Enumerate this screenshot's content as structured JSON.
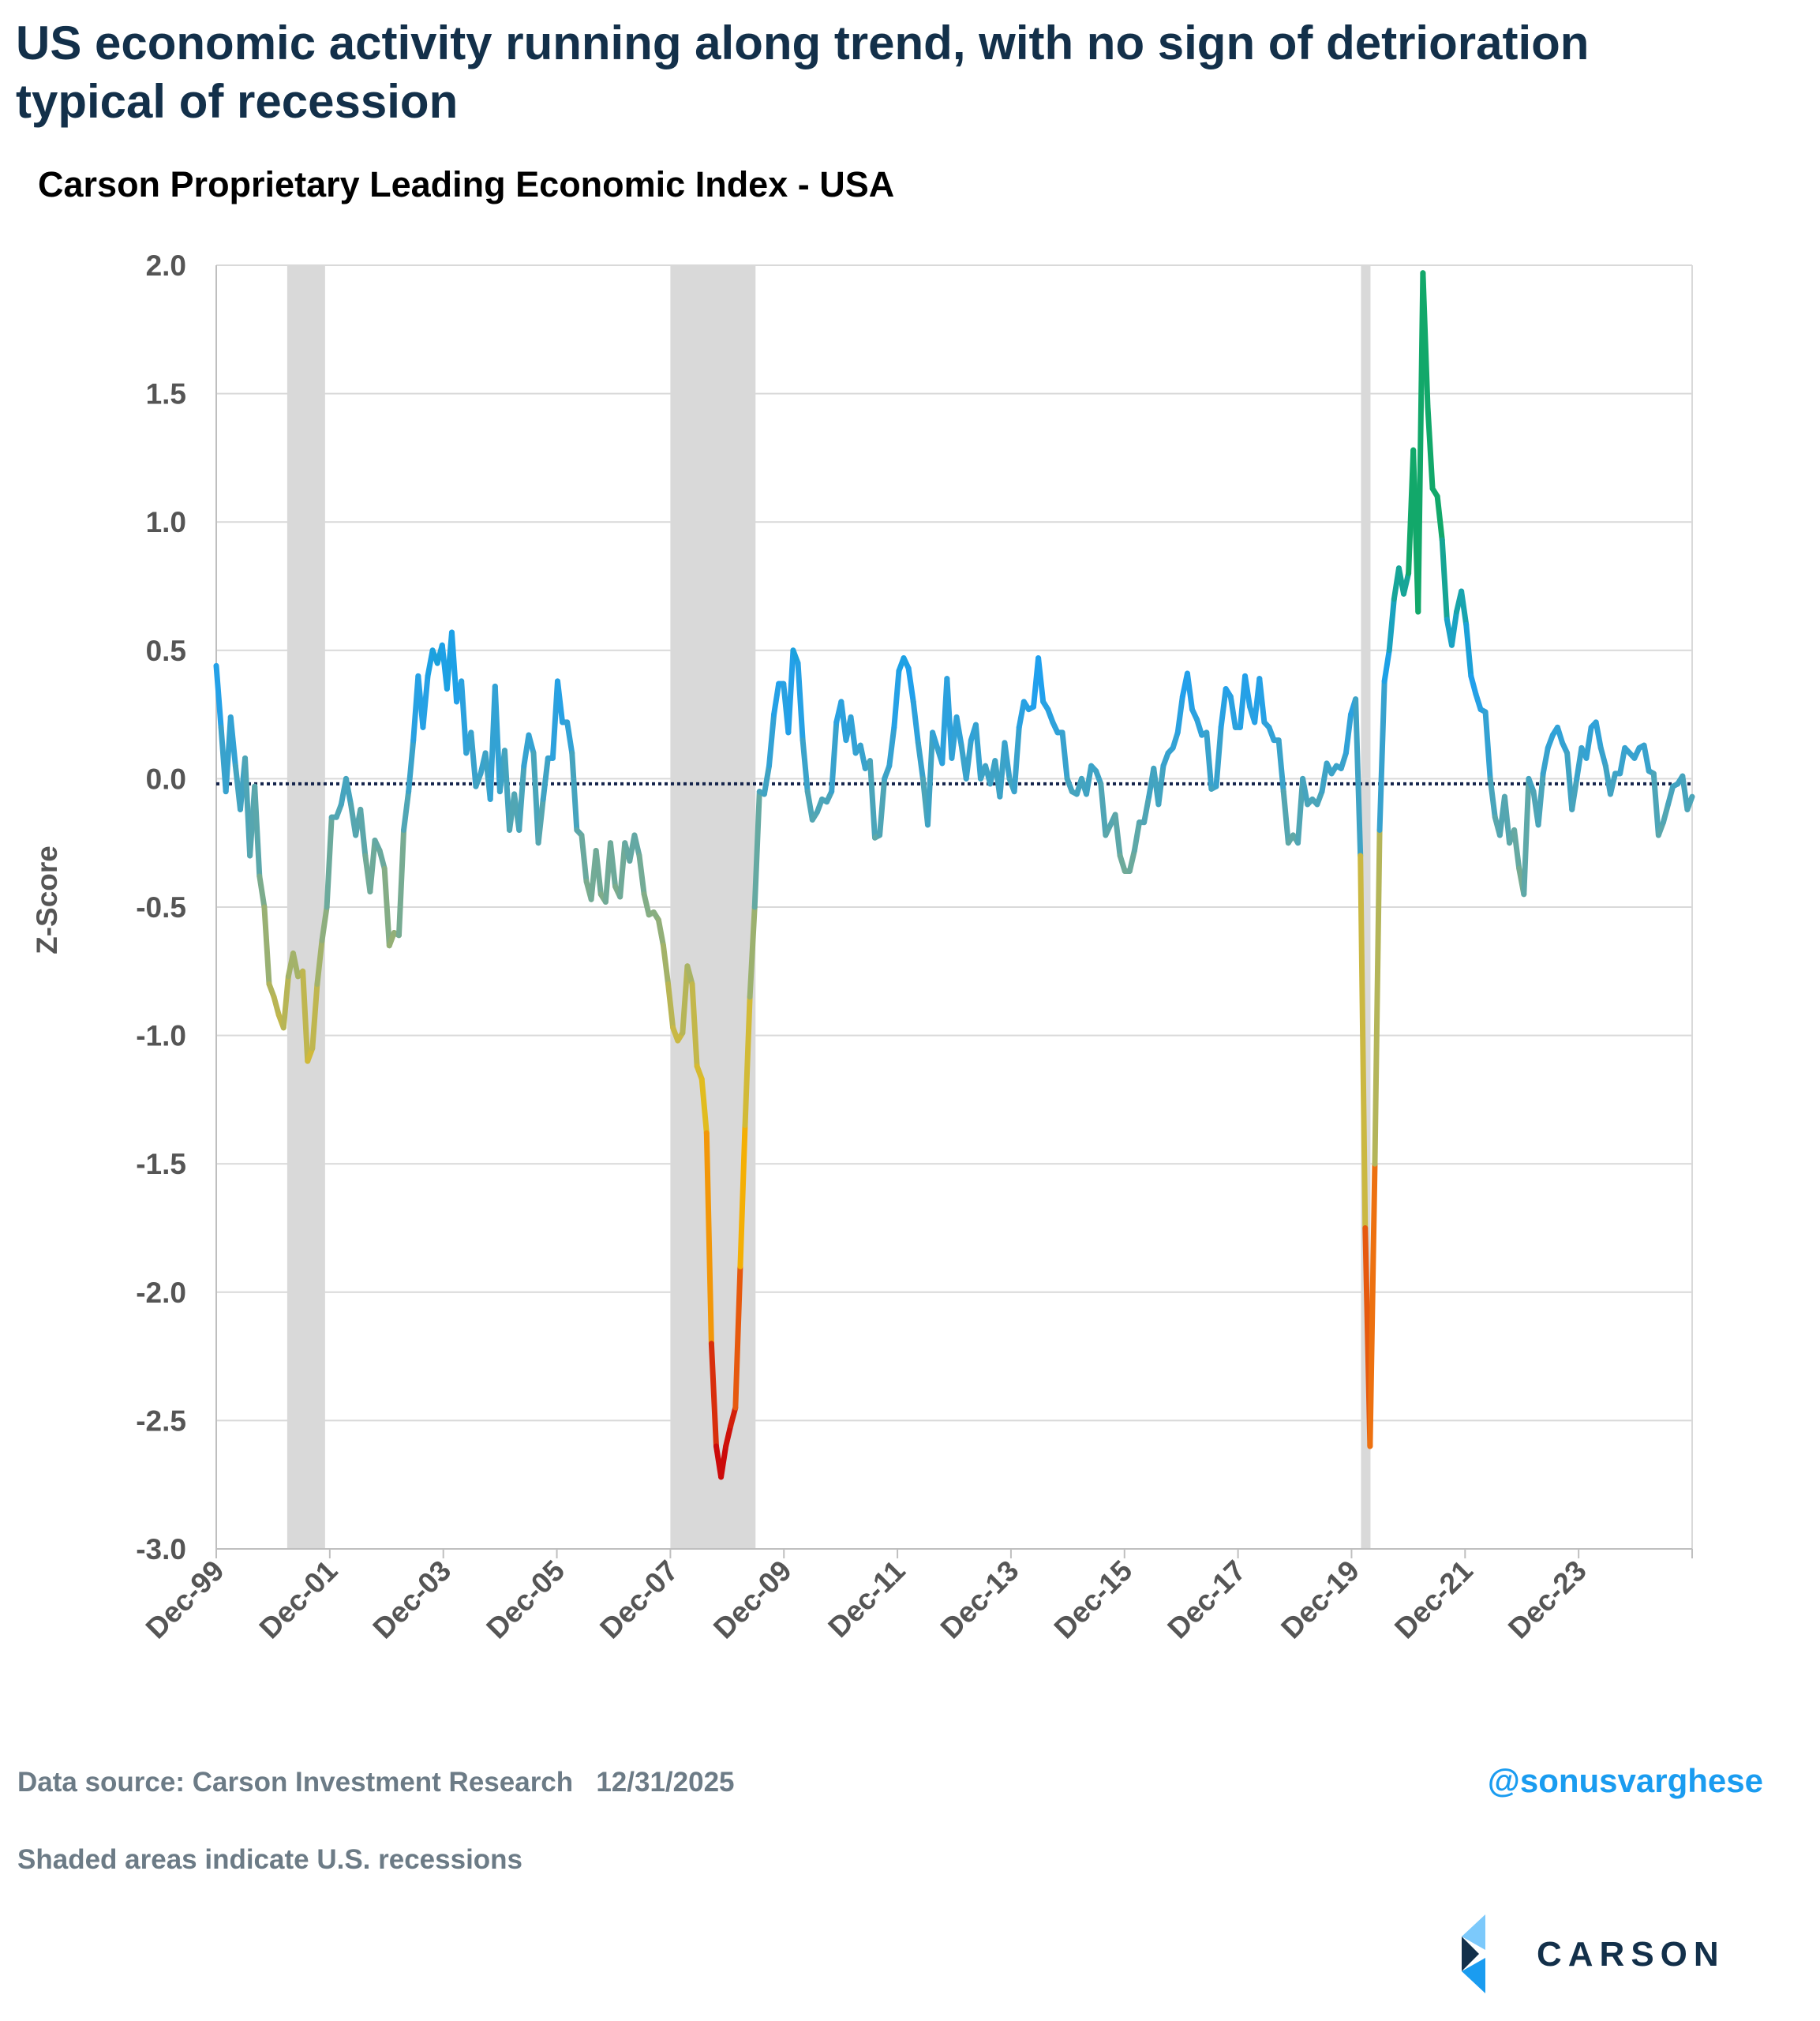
{
  "header": {
    "title": "US economic activity running along trend, with no sign of detrioration typical of recession",
    "subtitle": "Carson Proprietary Leading Economic Index - USA"
  },
  "footer": {
    "source": "Data source: Carson Investment Research   12/31/2025",
    "note": "Shaded areas indicate U.S. recessions",
    "handle": "@sonusvarghese",
    "logo": "CARSON"
  },
  "chart_data": {
    "type": "line",
    "title": "Carson Proprietary Leading Economic Index - USA",
    "ylabel": "Z-Score",
    "xlabel": "",
    "ylim": [
      -3.0,
      2.0
    ],
    "yticks": [
      "2.0",
      "1.5",
      "1.0",
      "0.5",
      "0.0",
      "-0.5",
      "-1.0",
      "-1.5",
      "-2.0",
      "-2.5",
      "-3.0"
    ],
    "xlim": [
      "Dec-99",
      "Dec-25"
    ],
    "frequency": "monthly",
    "xticks": [
      "Dec-99",
      "Dec-01",
      "Dec-03",
      "Dec-05",
      "Dec-07",
      "Dec-09",
      "Dec-11",
      "Dec-13",
      "Dec-15",
      "Dec-17",
      "Dec-19",
      "Dec-21",
      "Dec-23"
    ],
    "grid": true,
    "reference_line": -0.02,
    "recessions": [
      [
        "Mar-01",
        "Nov-01"
      ],
      [
        "Dec-07",
        "Jun-09"
      ],
      [
        "Feb-20",
        "Apr-20"
      ]
    ],
    "colors": {
      "high": "#12a86a",
      "mid": "#1ea0f0",
      "zero": "#3fa3c4",
      "low1": "#84ad86",
      "low2": "#c9b845",
      "low3": "#f5c000",
      "low4": "#f07a10",
      "low5": "#cc0a0a",
      "recession": "#d9d9d9",
      "reference": "#13234a"
    },
    "values": [
      0.44,
      0.2,
      -0.05,
      0.24,
      0.05,
      -0.12,
      0.08,
      -0.3,
      -0.03,
      -0.38,
      -0.5,
      -0.8,
      -0.85,
      -0.92,
      -0.97,
      -0.77,
      -0.68,
      -0.77,
      -0.75,
      -1.1,
      -1.05,
      -0.8,
      -0.63,
      -0.5,
      -0.15,
      -0.15,
      -0.1,
      0.0,
      -0.1,
      -0.22,
      -0.12,
      -0.3,
      -0.44,
      -0.24,
      -0.28,
      -0.35,
      -0.65,
      -0.6,
      -0.61,
      -0.2,
      -0.05,
      0.15,
      0.4,
      0.2,
      0.4,
      0.5,
      0.45,
      0.52,
      0.35,
      0.57,
      0.3,
      0.38,
      0.1,
      0.18,
      -0.03,
      0.02,
      0.1,
      -0.08,
      0.36,
      -0.05,
      0.11,
      -0.2,
      -0.06,
      -0.2,
      0.05,
      0.17,
      0.1,
      -0.25,
      -0.08,
      0.08,
      0.08,
      0.38,
      0.22,
      0.22,
      0.1,
      -0.2,
      -0.22,
      -0.4,
      -0.47,
      -0.28,
      -0.45,
      -0.48,
      -0.25,
      -0.42,
      -0.46,
      -0.25,
      -0.32,
      -0.22,
      -0.3,
      -0.45,
      -0.53,
      -0.52,
      -0.55,
      -0.65,
      -0.8,
      -0.97,
      -1.02,
      -0.99,
      -0.73,
      -0.8,
      -1.12,
      -1.17,
      -1.38,
      -2.2,
      -2.6,
      -2.72,
      -2.6,
      -2.52,
      -2.45,
      -1.9,
      -1.35,
      -0.85,
      -0.5,
      -0.05,
      -0.06,
      0.05,
      0.25,
      0.37,
      0.37,
      0.18,
      0.5,
      0.45,
      0.15,
      -0.05,
      -0.16,
      -0.13,
      -0.08,
      -0.09,
      -0.05,
      0.22,
      0.3,
      0.15,
      0.24,
      0.1,
      0.13,
      0.04,
      0.07,
      -0.23,
      -0.22,
      0.0,
      0.05,
      0.2,
      0.42,
      0.47,
      0.43,
      0.3,
      0.14,
      0.0,
      -0.18,
      0.18,
      0.12,
      0.06,
      0.39,
      0.08,
      0.24,
      0.13,
      0.0,
      0.15,
      0.21,
      0.0,
      0.05,
      -0.02,
      0.07,
      -0.07,
      0.14,
      0.0,
      -0.05,
      0.2,
      0.3,
      0.27,
      0.28,
      0.47,
      0.3,
      0.27,
      0.22,
      0.18,
      0.18,
      0.0,
      -0.05,
      -0.06,
      0.0,
      -0.06,
      0.05,
      0.03,
      -0.02,
      -0.22,
      -0.18,
      -0.14,
      -0.3,
      -0.36,
      -0.36,
      -0.28,
      -0.17,
      -0.17,
      -0.07,
      0.04,
      -0.1,
      0.05,
      0.1,
      0.12,
      0.18,
      0.32,
      0.41,
      0.27,
      0.23,
      0.17,
      0.18,
      -0.04,
      -0.03,
      0.2,
      0.35,
      0.32,
      0.2,
      0.2,
      0.4,
      0.28,
      0.22,
      0.39,
      0.22,
      0.2,
      0.15,
      0.15,
      -0.05,
      -0.25,
      -0.22,
      -0.25,
      0.0,
      -0.1,
      -0.08,
      -0.1,
      -0.05,
      0.06,
      0.02,
      0.05,
      0.04,
      0.1,
      0.25,
      0.31,
      -0.3,
      -1.75,
      -2.6,
      -1.5,
      -0.2,
      0.38,
      0.5,
      0.7,
      0.82,
      0.72,
      0.8,
      1.28,
      0.65,
      1.97,
      1.45,
      1.13,
      1.1,
      0.93,
      0.62,
      0.52,
      0.65,
      0.73,
      0.6,
      0.4,
      0.33,
      0.27,
      0.26,
      0.0,
      -0.15,
      -0.22,
      -0.07,
      -0.25,
      -0.2,
      -0.35,
      -0.45,
      0.0,
      -0.05,
      -0.18,
      0.02,
      0.12,
      0.17,
      0.2,
      0.14,
      0.1,
      -0.12,
      0.0,
      0.12,
      0.08,
      0.2,
      0.22,
      0.12,
      0.05,
      -0.06,
      0.02,
      0.02,
      0.12,
      0.1,
      0.08,
      0.12,
      0.13,
      0.03,
      0.02,
      -0.22,
      -0.17,
      -0.1,
      -0.03,
      -0.02,
      0.01,
      -0.12,
      -0.07
    ]
  }
}
